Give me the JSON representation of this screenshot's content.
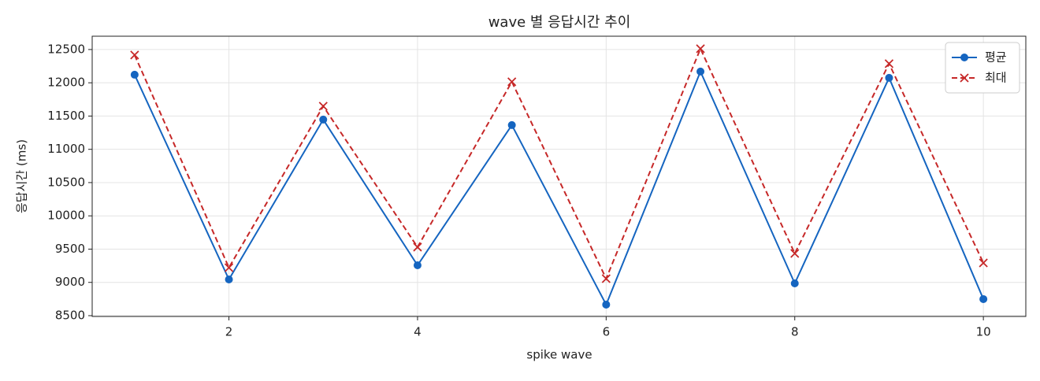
{
  "chart_data": {
    "type": "line",
    "title": "wave 별 응답시간 추이",
    "xlabel": "spike wave",
    "ylabel": "응답시간 (ms)",
    "x": [
      1,
      2,
      3,
      4,
      5,
      6,
      7,
      8,
      9,
      10
    ],
    "series": [
      {
        "name": "평균",
        "color": "#1565c0",
        "style": "solid",
        "marker": "circle",
        "values": [
          12121,
          9044,
          11447,
          9257,
          11364,
          8666,
          12169,
          8985,
          12074,
          8749
        ]
      },
      {
        "name": "최대",
        "color": "#c62828",
        "style": "dashed",
        "marker": "x",
        "values": [
          12417,
          9222,
          11648,
          9530,
          12015,
          9056,
          12512,
          9435,
          12287,
          9293
        ]
      }
    ],
    "xlim": [
      0.55,
      10.45
    ],
    "xticks": [
      2,
      4,
      6,
      8,
      10
    ],
    "ylim": [
      8488,
      12700
    ],
    "yticks": [
      8500,
      9000,
      9500,
      10000,
      10500,
      11000,
      11500,
      12000,
      12500
    ],
    "grid": true,
    "legend": "upper right"
  }
}
